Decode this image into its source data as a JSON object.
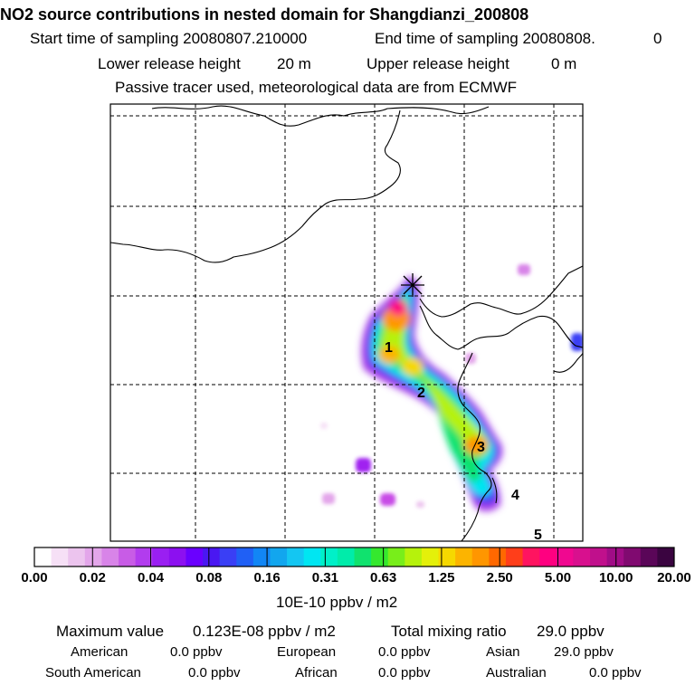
{
  "header": {
    "title": "NO2 source contributions in nested domain for Shangdianzi_200808",
    "start_label": "Start time of sampling 20080807.210000",
    "end_label": "End time of sampling 20080808.",
    "end_suffix": "0",
    "lower_label": "Lower release height",
    "lower_value": "20 m",
    "upper_label": "Upper release height",
    "upper_value": "0 m",
    "tracer_note": "Passive tracer used, meteorological data are from ECMWF"
  },
  "chart_data": {
    "type": "heatmap",
    "title": "NO2 source contributions in nested domain for Shangdianzi_200808",
    "colorbar": {
      "unit": "10E-10 ppbv / m2",
      "tick_labels": [
        "0.00",
        "0.02",
        "0.04",
        "0.08",
        "0.16",
        "0.31",
        "0.63",
        "1.25",
        "2.50",
        "5.00",
        "10.00",
        "20.00"
      ],
      "colors": [
        "#ffffff",
        "#f6e0f6",
        "#ecc4ee",
        "#e3a6ea",
        "#d884e8",
        "#c85ce6",
        "#b23cee",
        "#9a1ff2",
        "#8c10f0",
        "#6a00ff",
        "#4a17f2",
        "#3a3ff5",
        "#2060f5",
        "#1286f5",
        "#12a6ee",
        "#14c6f2",
        "#00e6f2",
        "#00f0c8",
        "#00ecaa",
        "#10e26e",
        "#35e82e",
        "#78ee1a",
        "#b6f20c",
        "#e4f00a",
        "#f6d800",
        "#fcb400",
        "#ff9600",
        "#ff6800",
        "#ff3e1a",
        "#ff1460",
        "#ff0080",
        "#f00890",
        "#d8108e",
        "#c0108c",
        "#a00c86",
        "#800a70",
        "#5a0658",
        "#3a0440"
      ]
    },
    "markers": [
      "1",
      "2",
      "3",
      "4",
      "5"
    ],
    "station_symbol": "star"
  },
  "footer": {
    "max_label": "Maximum value",
    "max_value": "0.123E-08 ppbv / m2",
    "total_label": "Total mixing ratio",
    "total_value": "29.0 ppbv",
    "regions": [
      {
        "name": "American",
        "value": "0.0 ppbv"
      },
      {
        "name": "European",
        "value": "0.0 ppbv"
      },
      {
        "name": "Asian",
        "value": "29.0 ppbv"
      },
      {
        "name": "South American",
        "value": "0.0 ppbv"
      },
      {
        "name": "African",
        "value": "0.0 ppbv"
      },
      {
        "name": "Australian",
        "value": "0.0 ppbv"
      }
    ]
  }
}
